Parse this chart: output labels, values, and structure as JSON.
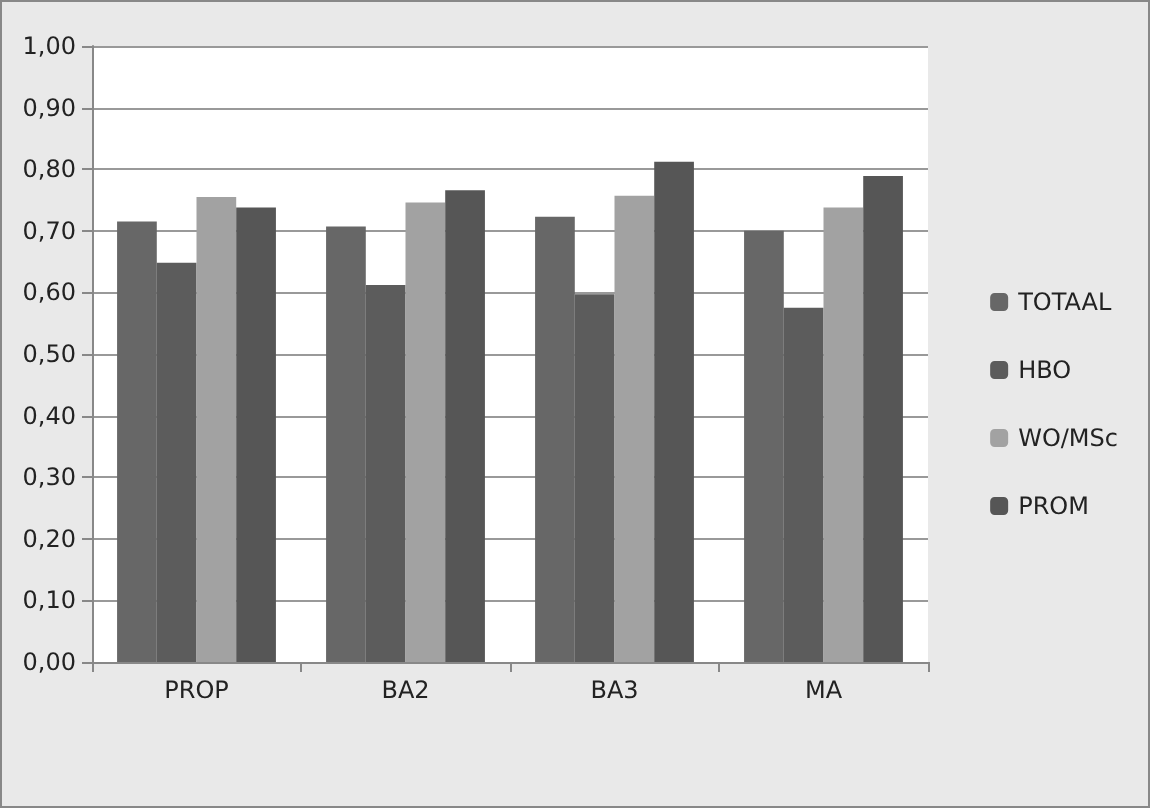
{
  "chart_data": {
    "type": "bar",
    "categories": [
      "PROP",
      "BA2",
      "BA3",
      "MA"
    ],
    "series": [
      {
        "name": "TOTAAL",
        "color": "#676767",
        "values": [
          0.715,
          0.707,
          0.723,
          0.7
        ]
      },
      {
        "name": "HBO",
        "color": "#5c5c5c",
        "values": [
          0.648,
          0.612,
          0.597,
          0.575
        ]
      },
      {
        "name": "WO/MSc",
        "color": "#a2a2a2",
        "values": [
          0.755,
          0.746,
          0.757,
          0.738
        ]
      },
      {
        "name": "PROM",
        "color": "#565656",
        "values": [
          0.738,
          0.766,
          0.812,
          0.789
        ]
      }
    ],
    "ylim": [
      0,
      1
    ],
    "yticks": [
      {
        "value": 0,
        "label": "0,00"
      },
      {
        "value": 0.1,
        "label": "0,10"
      },
      {
        "value": 0.2,
        "label": "0,20"
      },
      {
        "value": 0.3,
        "label": "0,30"
      },
      {
        "value": 0.4,
        "label": "0,40"
      },
      {
        "value": 0.5,
        "label": "0,50"
      },
      {
        "value": 0.6,
        "label": "0,60"
      },
      {
        "value": 0.7,
        "label": "0,70"
      },
      {
        "value": 0.8,
        "label": "0,80"
      },
      {
        "value": 0.9,
        "label": "0,90"
      },
      {
        "value": 1,
        "label": "1,00"
      }
    ],
    "grid": "y",
    "legend": "right"
  }
}
